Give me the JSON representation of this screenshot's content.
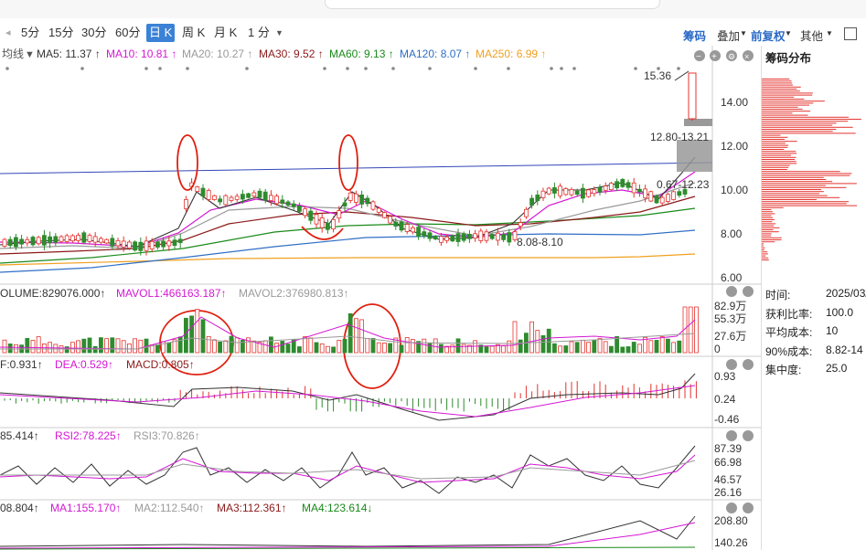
{
  "toolbar": {
    "timeframes": [
      "5分",
      "15分",
      "30分",
      "60分",
      "日 K",
      "周 K",
      "月 K",
      "1 分"
    ],
    "active": "日 K",
    "right": {
      "chip": "筹码",
      "overlay": "叠加",
      "adjust": "前复权",
      "other": "其他"
    }
  },
  "main_panel": {
    "indicator_name": "均线",
    "ma": [
      {
        "label": "MA5: 11.37 ↑",
        "color": "#333333"
      },
      {
        "label": "MA10: 10.81 ↑",
        "color": "#d417d4"
      },
      {
        "label": "MA20: 10.27 ↑",
        "color": "#9a9a9a"
      },
      {
        "label": "MA30: 9.52 ↑",
        "color": "#8b1a1a"
      },
      {
        "label": "MA60: 9.13 ↑",
        "color": "#1a8a1a"
      },
      {
        "label": "MA120: 8.07 ↑",
        "color": "#2f6fc4"
      },
      {
        "label": "MA250: 6.99 ↑",
        "color": "#f0a020"
      }
    ],
    "y_ticks": [
      "14.00",
      "12.00",
      "10.00",
      "8.00",
      "6.00"
    ],
    "annotations": {
      "high": "15.36",
      "zone": "12.80-13.21",
      "mid": "0.67-12.23",
      "low": "8.08-8.10"
    }
  },
  "volume_panel": {
    "labels": [
      {
        "text": "OLUME:829076.000↑",
        "color": "#333333"
      },
      {
        "text": "MAVOL1:466163.187↑",
        "color": "#d417d4"
      },
      {
        "text": "MAVOL2:376980.813↑",
        "color": "#9a9a9a"
      }
    ],
    "y_ticks": [
      "82.9万",
      "55.3万",
      "27.6万",
      "0"
    ]
  },
  "macd_panel": {
    "labels": [
      {
        "text": "F:0.931↑",
        "color": "#333333"
      },
      {
        "text": "DEA:0.529↑",
        "color": "#d417d4"
      },
      {
        "text": "MACD:0.805↑",
        "color": "#8b1a1a"
      }
    ],
    "y_ticks": [
      "0.93",
      "0.24",
      "-0.46"
    ]
  },
  "rsi_panel": {
    "labels": [
      {
        "text": "85.414↑",
        "color": "#333333"
      },
      {
        "text": "RSI2:78.225↑",
        "color": "#d417d4"
      },
      {
        "text": "RSI3:70.826↑",
        "color": "#9a9a9a"
      }
    ],
    "y_ticks": [
      "87.39",
      "66.98",
      "46.57",
      "26.16"
    ]
  },
  "ma4_panel": {
    "labels": [
      {
        "text": "08.804↑",
        "color": "#333333"
      },
      {
        "text": "MA1:155.170↑",
        "color": "#d417d4"
      },
      {
        "text": "MA2:112.540↑",
        "color": "#9a9a9a"
      },
      {
        "text": "MA3:112.361↑",
        "color": "#8b1a1a"
      },
      {
        "text": "MA4:123.614↓",
        "color": "#1a8a1a"
      }
    ],
    "y_ticks": [
      "208.80",
      "140.26"
    ]
  },
  "side_panel": {
    "title": "筹码分布",
    "rows": [
      {
        "label": "时间:",
        "value": "2025/03/"
      },
      {
        "label": "获利比率:",
        "value": "100.0"
      },
      {
        "label": "平均成本:",
        "value": "10"
      },
      {
        "label": "90%成本:",
        "value": "8.82-14"
      },
      {
        "label": "集中度:",
        "value": "25.0"
      }
    ]
  },
  "colors": {
    "up": "#e3342f",
    "down": "#2e8b2e",
    "accent": "#3b82d6"
  }
}
